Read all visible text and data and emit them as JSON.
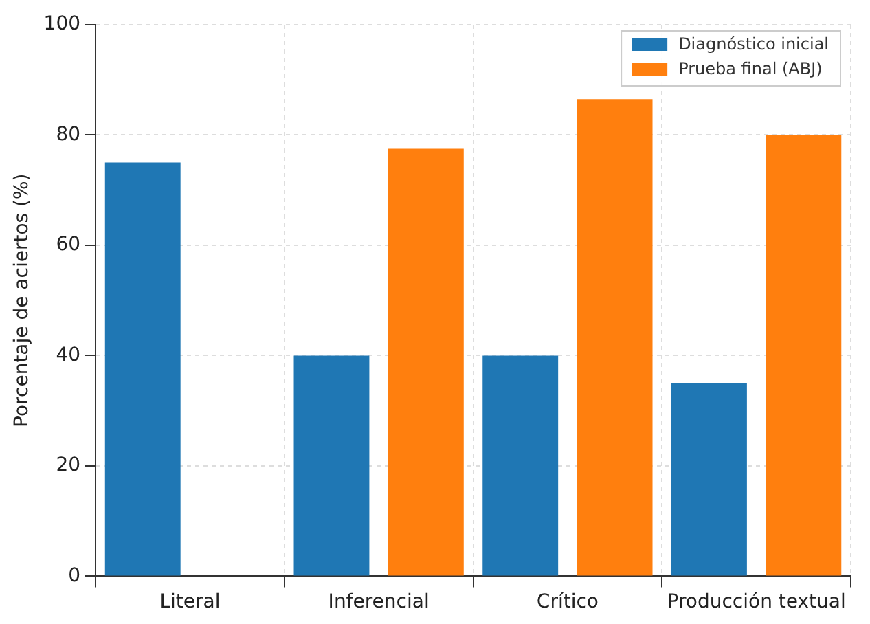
{
  "chart_data": {
    "type": "bar",
    "ylabel": "Porcentaje de aciertos (%)",
    "categories": [
      "Literal",
      "Inferencial",
      "Crítico",
      "Producción textual"
    ],
    "series": [
      {
        "name": "Diagnóstico inicial",
        "color": "#1f77b4",
        "values": [
          75,
          40,
          40,
          35
        ]
      },
      {
        "name": "Prueba final (ABJ)",
        "color": "#ff7f0e",
        "values": [
          null,
          77.5,
          86.5,
          80
        ]
      }
    ],
    "ylim": [
      0,
      100
    ],
    "yticks": [
      0,
      20,
      40,
      60,
      80,
      100
    ],
    "grid": true,
    "legend": "top right"
  }
}
